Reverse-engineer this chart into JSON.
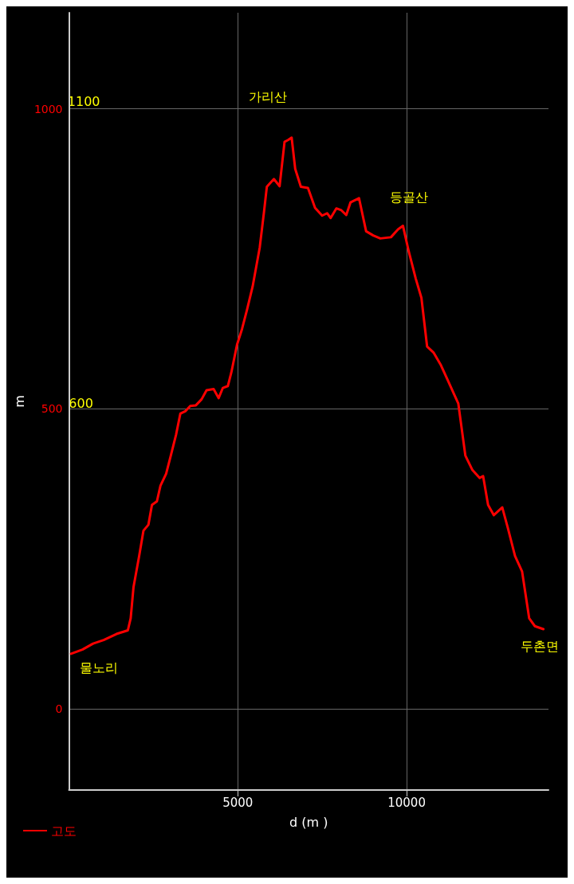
{
  "chart_data": {
    "type": "line",
    "xlabel": "d (m )",
    "ylabel": "m",
    "xlim": [
      0,
      14200
    ],
    "ylim": [
      -135,
      1160
    ],
    "xticks": [
      5000,
      10000
    ],
    "yticks": [
      0,
      500,
      1000
    ],
    "grid": true,
    "legend": "bottom left",
    "marker": "none",
    "line_style": "solid",
    "annotations": [
      "1100",
      "600",
      "가리산",
      "등골산",
      "물노리",
      "두촌면"
    ],
    "series": [
      {
        "name": "고도",
        "color": "#ff0000",
        "x": [
          63,
          399,
          714,
          1029,
          1407,
          1743,
          1827,
          1911,
          2079,
          2205,
          2352,
          2457,
          2604,
          2709,
          2877,
          3024,
          3171,
          3297,
          3444,
          3591,
          3759,
          3927,
          4074,
          4284,
          4431,
          4557,
          4704,
          4809,
          4977,
          5124,
          5271,
          5439,
          5649,
          5775,
          5859,
          6069,
          6237,
          6384,
          6489,
          6594,
          6699,
          6867,
          7077,
          7287,
          7497,
          7644,
          7749,
          7917,
          8064,
          8211,
          8337,
          8589,
          8799,
          9009,
          9219,
          9534,
          9744,
          9891,
          10059,
          10269,
          10437,
          10605,
          10794,
          11004,
          11214,
          11424,
          11529,
          11739,
          11949,
          12159,
          12264,
          12411,
          12579,
          12831,
          12999,
          13209,
          13419,
          13629,
          13797,
          14049
        ],
        "values": [
          92,
          99,
          109,
          115,
          125,
          131,
          151,
          203,
          255,
          297,
          307,
          340,
          346,
          372,
          392,
          424,
          457,
          492,
          496,
          505,
          506,
          516,
          531,
          533,
          518,
          535,
          538,
          561,
          607,
          633,
          665,
          704,
          769,
          828,
          870,
          883,
          871,
          945,
          948,
          952,
          900,
          870,
          868,
          835,
          822,
          826,
          818,
          834,
          831,
          823,
          844,
          851,
          796,
          789,
          784,
          786,
          799,
          805,
          763,
          717,
          685,
          604,
          594,
          574,
          548,
          522,
          509,
          422,
          398,
          385,
          388,
          340,
          323,
          336,
          301,
          255,
          229,
          151,
          138,
          133
        ]
      }
    ]
  }
}
